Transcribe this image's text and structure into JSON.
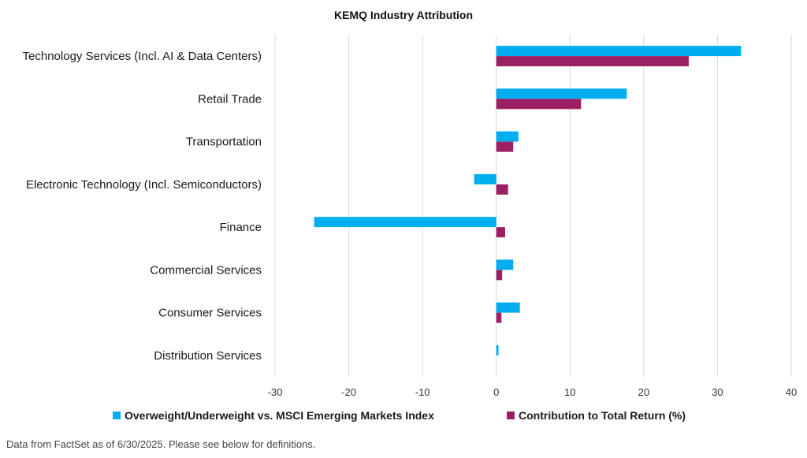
{
  "chart_data": {
    "type": "bar",
    "orientation": "horizontal",
    "title": "KEMQ Industry Attribution",
    "categories": [
      "Technology Services (Incl. AI & Data Centers)",
      "Retail Trade",
      "Transportation",
      "Electronic Technology (Incl. Semiconductors)",
      "Finance",
      "Commercial Services",
      "Consumer Services",
      "Distribution Services"
    ],
    "series": [
      {
        "name": "Overweight/Underweight vs. MSCI Emerging Markets Index",
        "color": "#00AEEF",
        "values": [
          33.2,
          17.7,
          3.0,
          -3.0,
          -24.7,
          2.3,
          3.2,
          0.3
        ]
      },
      {
        "name": "Contribution to Total Return (%)",
        "color": "#9B1F63",
        "values": [
          26.1,
          11.5,
          2.3,
          1.6,
          1.2,
          0.8,
          0.7,
          0.0
        ]
      }
    ],
    "xlim": [
      -30,
      40
    ],
    "xticks": [
      -30,
      -20,
      -10,
      0,
      10,
      20,
      30,
      40
    ],
    "xlabel": "",
    "ylabel": "",
    "grid": "vertical",
    "legend_position": "bottom"
  },
  "footnote": "Data from FactSet as of 6/30/2025. Please see below for definitions."
}
